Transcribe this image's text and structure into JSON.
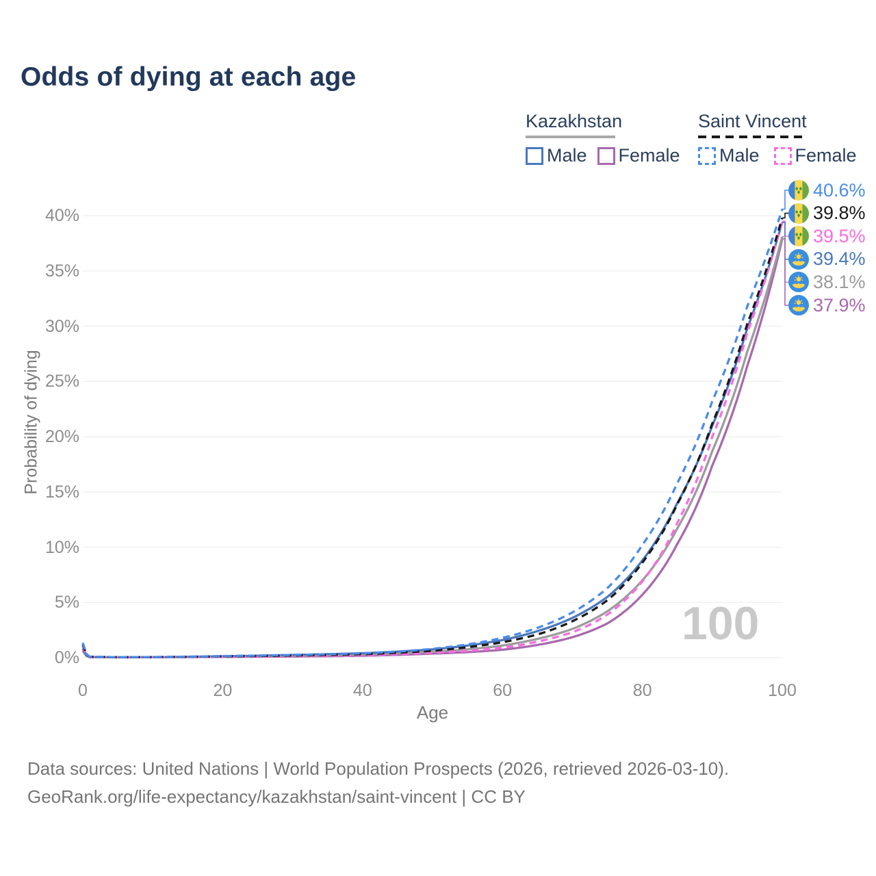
{
  "title": "Odds of dying at each age",
  "legend": {
    "groups": [
      {
        "name": "Kazakhstan",
        "line_style": "solid",
        "underline_color": "#a8a8a8",
        "items": [
          {
            "label": "Male",
            "color": "#4a78bc"
          },
          {
            "label": "Female",
            "color": "#a869ae"
          }
        ]
      },
      {
        "name": "Saint Vincent",
        "line_style": "dashed",
        "underline_color": "#1a1a1a",
        "items": [
          {
            "label": "Male",
            "color": "#4a8ce8"
          },
          {
            "label": "Female",
            "color": "#fa6ce2"
          }
        ]
      }
    ]
  },
  "axes": {
    "y_title": "Probability of dying",
    "x_title": "Age",
    "y_ticks": [
      "0%",
      "5%",
      "10%",
      "15%",
      "20%",
      "25%",
      "30%",
      "35%",
      "40%"
    ],
    "y_tick_values": [
      0,
      5,
      10,
      15,
      20,
      25,
      30,
      35,
      40
    ],
    "x_ticks": [
      "0",
      "20",
      "40",
      "60",
      "80",
      "100"
    ],
    "x_tick_values": [
      0,
      20,
      40,
      60,
      80,
      100
    ]
  },
  "watermark": "100",
  "footer": {
    "line1": "Data sources: United Nations | World Population Prospects (2026, retrieved 2026-03-10).",
    "line2": "GeoRank.org/life-expectancy/kazakhstan/saint-vincent | CC BY"
  },
  "chart_data": {
    "type": "line",
    "xlabel": "Age",
    "ylabel": "Probability of dying",
    "x_range": [
      0,
      100
    ],
    "y_range_pct": [
      0,
      43
    ],
    "grid": "horizontal-only",
    "grid_color": "#efefef",
    "legend_position": "top-right",
    "ages": [
      0,
      1,
      5,
      10,
      20,
      30,
      40,
      45,
      50,
      55,
      60,
      65,
      70,
      75,
      80,
      85,
      90,
      95,
      100
    ],
    "series": [
      {
        "name": "Kazakhstan Female",
        "country": "Kazakhstan",
        "sex": "female",
        "flag": "kazakhstan",
        "color": "#a869ae",
        "dashed": false,
        "end_value": 37.9,
        "end_label": "37.9%",
        "values_pct": [
          0.6,
          0.05,
          0.03,
          0.04,
          0.07,
          0.11,
          0.18,
          0.26,
          0.37,
          0.5,
          0.72,
          1.15,
          1.85,
          3.1,
          5.7,
          10.3,
          17.4,
          26.4,
          37.9
        ]
      },
      {
        "name": "Kazakhstan",
        "country": "Kazakhstan",
        "sex": "all",
        "flag": "kazakhstan",
        "color": "#9c9c9c",
        "dashed": false,
        "end_value": 38.1,
        "end_label": "38.1%",
        "values_pct": [
          0.75,
          0.06,
          0.035,
          0.045,
          0.1,
          0.17,
          0.27,
          0.38,
          0.53,
          0.75,
          1.1,
          1.7,
          2.6,
          4.2,
          7.0,
          11.7,
          18.7,
          27.7,
          38.1
        ]
      },
      {
        "name": "Kazakhstan Male",
        "country": "Kazakhstan",
        "sex": "male",
        "flag": "kazakhstan",
        "color": "#4a78bc",
        "dashed": false,
        "end_value": 39.4,
        "end_label": "39.4%",
        "values_pct": [
          0.85,
          0.07,
          0.04,
          0.05,
          0.13,
          0.25,
          0.4,
          0.55,
          0.75,
          1.1,
          1.6,
          2.4,
          3.6,
          5.5,
          8.8,
          14.0,
          21.0,
          29.8,
          39.4
        ]
      },
      {
        "name": "Saint Vincent Female",
        "country": "Saint Vincent",
        "sex": "female",
        "flag": "saint-vincent",
        "color": "#fa6ce2",
        "dashed": true,
        "end_value": 39.5,
        "end_label": "39.5%",
        "values_pct": [
          1.05,
          0.07,
          0.04,
          0.05,
          0.09,
          0.14,
          0.22,
          0.32,
          0.45,
          0.62,
          0.9,
          1.45,
          2.3,
          3.9,
          6.9,
          12.2,
          20.0,
          29.4,
          39.5
        ]
      },
      {
        "name": "Saint Vincent",
        "country": "Saint Vincent",
        "sex": "all",
        "flag": "saint-vincent",
        "color": "#1a1a1a",
        "dashed": true,
        "end_value": 39.8,
        "end_label": "39.8%",
        "values_pct": [
          1.2,
          0.08,
          0.045,
          0.055,
          0.12,
          0.2,
          0.32,
          0.45,
          0.63,
          0.95,
          1.4,
          2.1,
          3.3,
          5.2,
          8.6,
          13.9,
          21.2,
          30.2,
          39.8
        ]
      },
      {
        "name": "Saint Vincent Male",
        "country": "Saint Vincent",
        "sex": "male",
        "flag": "saint-vincent",
        "color": "#4a8ce8",
        "dashed": true,
        "end_value": 40.6,
        "end_label": "40.6%",
        "values_pct": [
          1.35,
          0.09,
          0.05,
          0.06,
          0.15,
          0.25,
          0.4,
          0.55,
          0.8,
          1.2,
          1.8,
          2.7,
          4.1,
          6.3,
          10.2,
          15.8,
          23.2,
          31.8,
          40.6
        ]
      }
    ]
  }
}
